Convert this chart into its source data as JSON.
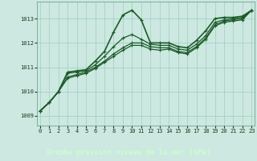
{
  "title": "Graphe pression niveau de la mer (hPa)",
  "bg_color": "#cce8e0",
  "label_bg_color": "#2d6b3c",
  "label_text_color": "#ccffcc",
  "grid_color": "#9fcfbf",
  "line_color": "#1a5c28",
  "marker_color": "#1a5c28",
  "xlim": [
    -0.3,
    23.3
  ],
  "ylim": [
    1008.6,
    1013.7
  ],
  "yticks": [
    1009,
    1010,
    1011,
    1012,
    1013
  ],
  "xticks": [
    0,
    1,
    2,
    3,
    4,
    5,
    6,
    7,
    8,
    9,
    10,
    11,
    12,
    13,
    14,
    15,
    16,
    17,
    18,
    19,
    20,
    21,
    22,
    23
  ],
  "series": [
    [
      1009.2,
      1009.55,
      1010.0,
      1010.8,
      1010.85,
      1010.9,
      1011.25,
      1011.65,
      1012.45,
      1013.15,
      1013.35,
      1012.95,
      1012.0,
      1012.0,
      1012.0,
      1011.85,
      1011.8,
      1012.1,
      1012.5,
      1013.0,
      1013.05,
      1013.05,
      1013.1,
      1013.35
    ],
    [
      1009.2,
      1009.55,
      1010.0,
      1010.75,
      1010.8,
      1010.85,
      1011.1,
      1011.45,
      1011.85,
      1012.2,
      1012.35,
      1012.15,
      1011.95,
      1011.9,
      1011.9,
      1011.75,
      1011.7,
      1011.95,
      1012.3,
      1012.85,
      1012.95,
      1013.0,
      1013.05,
      1013.35
    ],
    [
      1009.2,
      1009.55,
      1010.0,
      1010.6,
      1010.7,
      1010.8,
      1011.0,
      1011.25,
      1011.55,
      1011.8,
      1012.0,
      1012.0,
      1011.85,
      1011.8,
      1011.8,
      1011.65,
      1011.6,
      1011.85,
      1012.2,
      1012.75,
      1012.9,
      1012.95,
      1013.0,
      1013.35
    ],
    [
      1009.2,
      1009.55,
      1010.0,
      1010.55,
      1010.65,
      1010.75,
      1010.95,
      1011.2,
      1011.45,
      1011.7,
      1011.9,
      1011.9,
      1011.75,
      1011.7,
      1011.75,
      1011.6,
      1011.55,
      1011.8,
      1012.15,
      1012.7,
      1012.85,
      1012.9,
      1012.95,
      1013.35
    ]
  ]
}
